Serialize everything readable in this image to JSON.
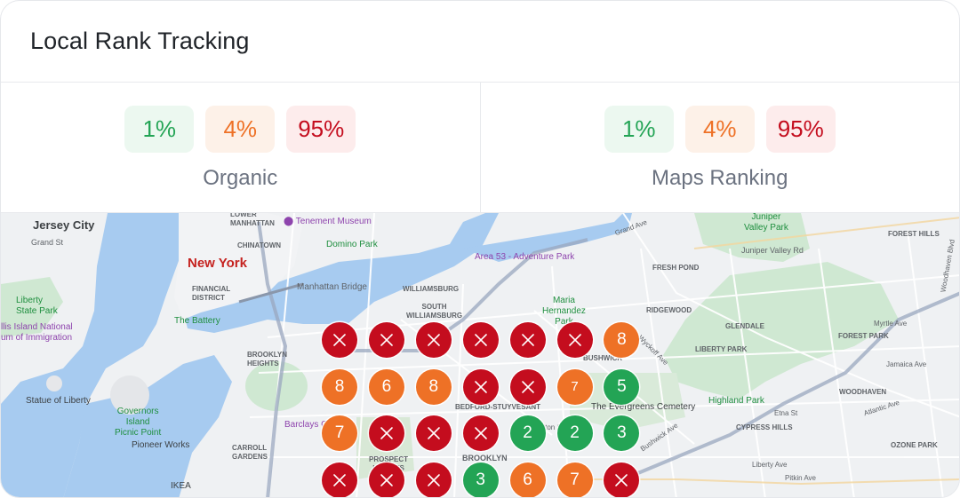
{
  "header": {
    "title": "Local Rank Tracking"
  },
  "organic": {
    "label": "Organic",
    "stats": [
      {
        "value": "1%",
        "tone": "good"
      },
      {
        "value": "4%",
        "tone": "mid"
      },
      {
        "value": "95%",
        "tone": "bad"
      }
    ]
  },
  "maps": {
    "label": "Maps Ranking",
    "stats": [
      {
        "value": "1%",
        "tone": "good"
      },
      {
        "value": "4%",
        "tone": "mid"
      },
      {
        "value": "95%",
        "tone": "bad"
      }
    ]
  },
  "colors": {
    "good": "#23a455",
    "mid": "#ee7126",
    "bad": "#c40d1e"
  },
  "map": {
    "labels": {
      "jersey_city": "Jersey City",
      "grand_st": "Grand St",
      "new_york": "New York",
      "lower_manhattan": "LOWER\nMANHATTAN",
      "chinatown": "CHINATOWN",
      "tenement_museum": "Tenement Museum",
      "domino_park": "Domino Park",
      "financial_district": "FINANCIAL\nDISTRICT",
      "manhattan_bridge": "Manhattan Bridge",
      "the_battery": "The Battery",
      "liberty_state_park": "Liberty\nState Park",
      "ellis_island": "llis Island National\num of Immigration",
      "statue_of_liberty": "Statue of Liberty",
      "governors_island": "Governors\nIsland\nPicnic Point",
      "pioneer_works": "Pioneer Works",
      "carroll_gardens": "CARROLL\nGARDENS",
      "brooklyn_heights": "BROOKLYN\nHEIGHTS",
      "williamsburg": "WILLIAMSBURG",
      "south_williamsburg": "SOUTH\nWILLIAMSBURG",
      "area53": "Area 53 - Adventure Park",
      "maria_hernandez": "Maria\nHernandez\nPark",
      "bushwick": "BUSHWICK",
      "bedford": "BEDFORD-STUYVESANT",
      "evergreens": "The Evergreens Cemetery",
      "brooklyn": "BROOKLYN",
      "prospect": "PROSPECT\nHEIGHTS",
      "barclays": "Barclays C",
      "ridgewood": "RIDGEWOOD",
      "fresh_pond": "FRESH POND",
      "glendale": "GLENDALE",
      "liberty_park": "LIBERTY PARK",
      "forest_park": "FOREST PARK",
      "woodhaven": "WOODHAVEN",
      "cypress_hills": "CYPRESS HILLS",
      "ozone_park": "OZONE PARK",
      "highland_park": "Highland Park",
      "juniper_valley": "Juniper\nValley Park",
      "juniper_valley_rd": "Juniper Valley Rd",
      "forest_hills": "FOREST HILLS",
      "ikea": "IKEA",
      "fulton_st": "Fulton St",
      "jamaica_ave": "Jamaica Ave",
      "atlantic_ave": "Atlantic Ave",
      "myrtle_ave": "Myrtle Ave",
      "liberty_ave": "Liberty Ave",
      "pitkin_ave": "Pitkin Ave",
      "grand_ave": "Grand Ave",
      "wyckoff_ave": "Wyckoff Ave",
      "bushwick_ave": "Bushwick Ave",
      "etna_st": "Etna St",
      "woodhaven_blvd": "Woodhaven Blvd"
    }
  },
  "grid": {
    "rows": [
      [
        "x",
        "x",
        "x",
        "x",
        "x",
        "x",
        "8"
      ],
      [
        "8",
        "6",
        "8",
        "x",
        "x",
        "7",
        "5"
      ],
      [
        "7",
        "x",
        "x",
        "x",
        "2",
        "2",
        "3"
      ],
      [
        "x",
        "x",
        "x",
        "3",
        "6",
        "7",
        "x"
      ]
    ]
  }
}
